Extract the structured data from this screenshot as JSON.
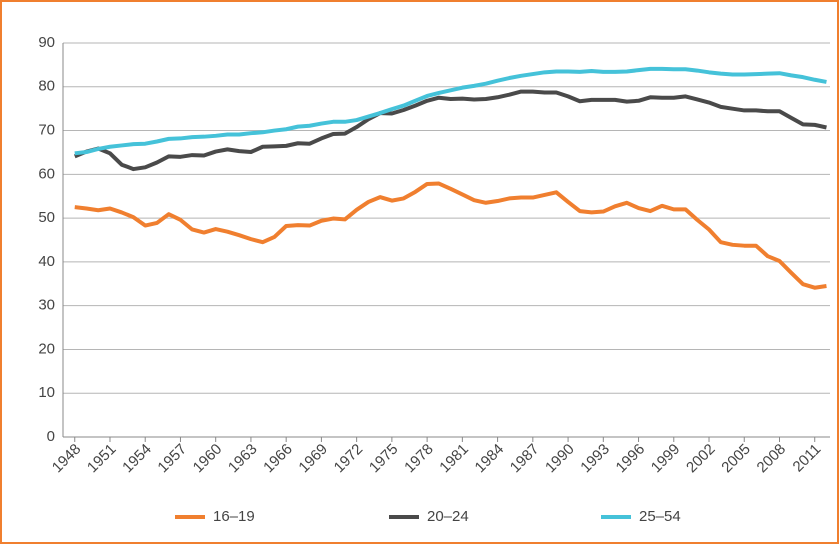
{
  "chart_data": {
    "type": "line",
    "x": [
      1948,
      1949,
      1950,
      1951,
      1952,
      1953,
      1954,
      1955,
      1956,
      1957,
      1958,
      1959,
      1960,
      1961,
      1962,
      1963,
      1964,
      1965,
      1966,
      1967,
      1968,
      1969,
      1970,
      1971,
      1972,
      1973,
      1974,
      1975,
      1976,
      1977,
      1978,
      1979,
      1980,
      1981,
      1982,
      1983,
      1984,
      1985,
      1986,
      1987,
      1988,
      1989,
      1990,
      1991,
      1992,
      1993,
      1994,
      1995,
      1996,
      1997,
      1998,
      1999,
      2000,
      2001,
      2002,
      2003,
      2004,
      2005,
      2006,
      2007,
      2008,
      2009,
      2010,
      2011,
      2012
    ],
    "series": [
      {
        "name": "16–19",
        "color": "#f07f2f",
        "values": [
          52.5,
          52.2,
          51.8,
          52.2,
          51.3,
          50.2,
          48.3,
          48.9,
          50.9,
          49.6,
          47.4,
          46.7,
          47.5,
          46.9,
          46.1,
          45.2,
          44.5,
          45.7,
          48.2,
          48.4,
          48.3,
          49.4,
          49.9,
          49.7,
          51.9,
          53.7,
          54.8,
          54.0,
          54.5,
          56.0,
          57.8,
          57.9,
          56.7,
          55.4,
          54.1,
          53.5,
          53.9,
          54.5,
          54.7,
          54.7,
          55.3,
          55.9,
          53.7,
          51.6,
          51.3,
          51.5,
          52.7,
          53.5,
          52.3,
          51.6,
          52.8,
          52.0,
          52.0,
          49.6,
          47.4,
          44.5,
          43.9,
          43.7,
          43.7,
          41.3,
          40.2,
          37.5,
          34.9,
          34.1,
          34.5
        ]
      },
      {
        "name": "20–24",
        "color": "#4a4a4a",
        "values": [
          64.1,
          65.2,
          65.9,
          64.8,
          62.2,
          61.2,
          61.6,
          62.7,
          64.1,
          64.0,
          64.4,
          64.3,
          65.2,
          65.7,
          65.3,
          65.1,
          66.3,
          66.4,
          66.5,
          67.1,
          67.0,
          68.2,
          69.2,
          69.3,
          70.8,
          72.6,
          74.0,
          73.9,
          74.7,
          75.7,
          76.8,
          77.5,
          77.2,
          77.3,
          77.1,
          77.2,
          77.6,
          78.2,
          78.9,
          78.9,
          78.7,
          78.7,
          77.8,
          76.7,
          77.0,
          77.0,
          77.0,
          76.6,
          76.8,
          77.6,
          77.5,
          77.5,
          77.8,
          77.1,
          76.4,
          75.4,
          75.0,
          74.6,
          74.6,
          74.4,
          74.4,
          72.9,
          71.4,
          71.3,
          70.7
        ]
      },
      {
        "name": "25–54",
        "color": "#45c2d9",
        "values": [
          64.8,
          65.1,
          65.8,
          66.3,
          66.6,
          66.9,
          67.0,
          67.5,
          68.1,
          68.2,
          68.5,
          68.6,
          68.8,
          69.1,
          69.1,
          69.4,
          69.6,
          70.0,
          70.3,
          70.9,
          71.1,
          71.6,
          72.0,
          72.0,
          72.4,
          73.2,
          74.0,
          74.9,
          75.7,
          76.8,
          77.9,
          78.6,
          79.2,
          79.8,
          80.2,
          80.7,
          81.4,
          82.0,
          82.5,
          82.9,
          83.3,
          83.5,
          83.5,
          83.4,
          83.6,
          83.4,
          83.4,
          83.5,
          83.8,
          84.1,
          84.1,
          84.0,
          84.0,
          83.7,
          83.3,
          83.0,
          82.8,
          82.8,
          82.9,
          83.0,
          83.1,
          82.6,
          82.2,
          81.6,
          81.1
        ]
      }
    ],
    "xlim": [
      1947,
      2012.3
    ],
    "xticks": [
      1948,
      1951,
      1954,
      1957,
      1960,
      1963,
      1966,
      1969,
      1972,
      1975,
      1978,
      1981,
      1984,
      1987,
      1990,
      1993,
      1996,
      1999,
      2002,
      2005,
      2008,
      2011
    ],
    "ylim": [
      0,
      90
    ],
    "yticks": [
      0,
      10,
      20,
      30,
      40,
      50,
      60,
      70,
      80,
      90
    ],
    "grid": true,
    "legend": "bottom"
  }
}
